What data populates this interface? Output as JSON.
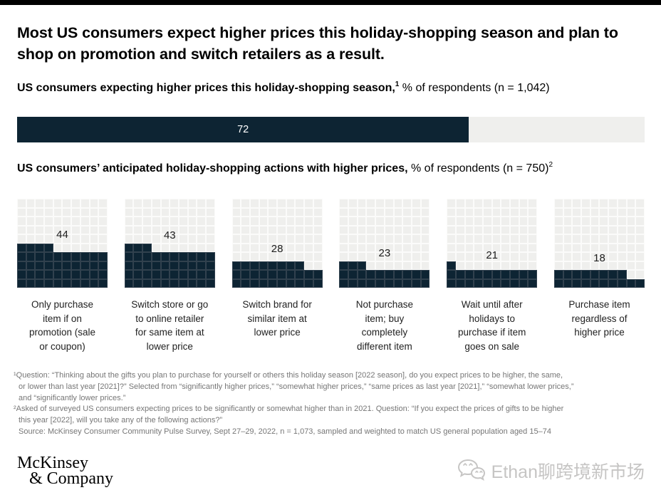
{
  "title": "Most US consumers expect higher prices this holiday-shopping season and plan to shop on promotion and switch retailers as a result.",
  "section1": {
    "heading_bold": "US consumers expecting higher prices this holiday-shopping season,",
    "heading_sup": "1",
    "heading_rest": " % of respondents (n = 1,042)",
    "bar_value": 72
  },
  "section2": {
    "heading_bold": "US consumers’ anticipated holiday-shopping actions with higher prices,",
    "heading_rest": " % of respondents (n = 750)",
    "heading_sup": "2"
  },
  "waffles": [
    {
      "value": 44,
      "label": "Only purchase\nitem if on\npromotion (sale\nor coupon)"
    },
    {
      "value": 43,
      "label": "Switch store or go\nto online retailer\nfor same item at\nlower price"
    },
    {
      "value": 28,
      "label": "Switch brand for\nsimilar item at\nlower price"
    },
    {
      "value": 23,
      "label": "Not purchase\nitem; buy\ncompletely\ndifferent item"
    },
    {
      "value": 21,
      "label": "Wait until after\nholidays to\npurchase if item\ngoes on sale"
    },
    {
      "value": 18,
      "label": "Purchase item\nregardless of\nhigher price"
    }
  ],
  "footnotes": [
    {
      "lines": [
        "¹Question: “Thinking about the gifts you plan to purchase for yourself or others this holiday season [2022 season], do you expect prices to be higher, the same,",
        "or lower than last year [2021]?” Selected from “significantly higher prices,” “somewhat higher prices,” “same prices as last year [2021],” “somewhat lower prices,”",
        "and “significantly lower prices.”"
      ]
    },
    {
      "lines": [
        "²Asked of surveyed US consumers expecting prices to be significantly or somewhat higher than in 2021. Question: “If you expect the prices of gifts to be higher",
        "this year [2022], will you take any of the following actions?”"
      ]
    },
    {
      "lines": [
        "Source: McKinsey Consumer Community Pulse Survey, Sept 27–29, 2022, n = 1,073, sampled and weighted to match US general population aged 15–74"
      ],
      "no_hang": true
    }
  ],
  "logo": {
    "line1": "McKinsey",
    "line2": "& Company"
  },
  "watermark": {
    "text": "Ethan聊跨境新市场",
    "icon": "wechat-icon"
  },
  "colors": {
    "accent_navy": "#0d2433",
    "track_gray": "#efefed",
    "filled_gridline": "#31414e",
    "footnote_gray": "#767676",
    "top_bar": "#000000",
    "watermark_gray": "#c6c5c4"
  },
  "chart_data": [
    {
      "type": "bar",
      "orientation": "horizontal",
      "title": "US consumers expecting higher prices this holiday-shopping season, % of respondents (n = 1,042)",
      "categories": [
        "Expecting higher prices"
      ],
      "values": [
        72
      ],
      "xlim": [
        0,
        100
      ],
      "unit": "%",
      "data_labels": true,
      "grid": false,
      "legend": "none"
    },
    {
      "type": "waffle",
      "grid_size": "10x10 cells, each cell = 1%",
      "title": "US consumers’ anticipated holiday-shopping actions with higher prices, % of respondents (n = 750)",
      "categories": [
        "Only purchase item if on promotion (sale or coupon)",
        "Switch store or go to online retailer for same item at lower price",
        "Switch brand for similar item at lower price",
        "Not purchase item; buy completely different item",
        "Wait until after holidays to purchase if item goes on sale",
        "Purchase item regardless of higher price"
      ],
      "values": [
        44,
        43,
        28,
        23,
        21,
        18
      ],
      "unit": "%",
      "data_labels": true,
      "legend": "none"
    }
  ]
}
